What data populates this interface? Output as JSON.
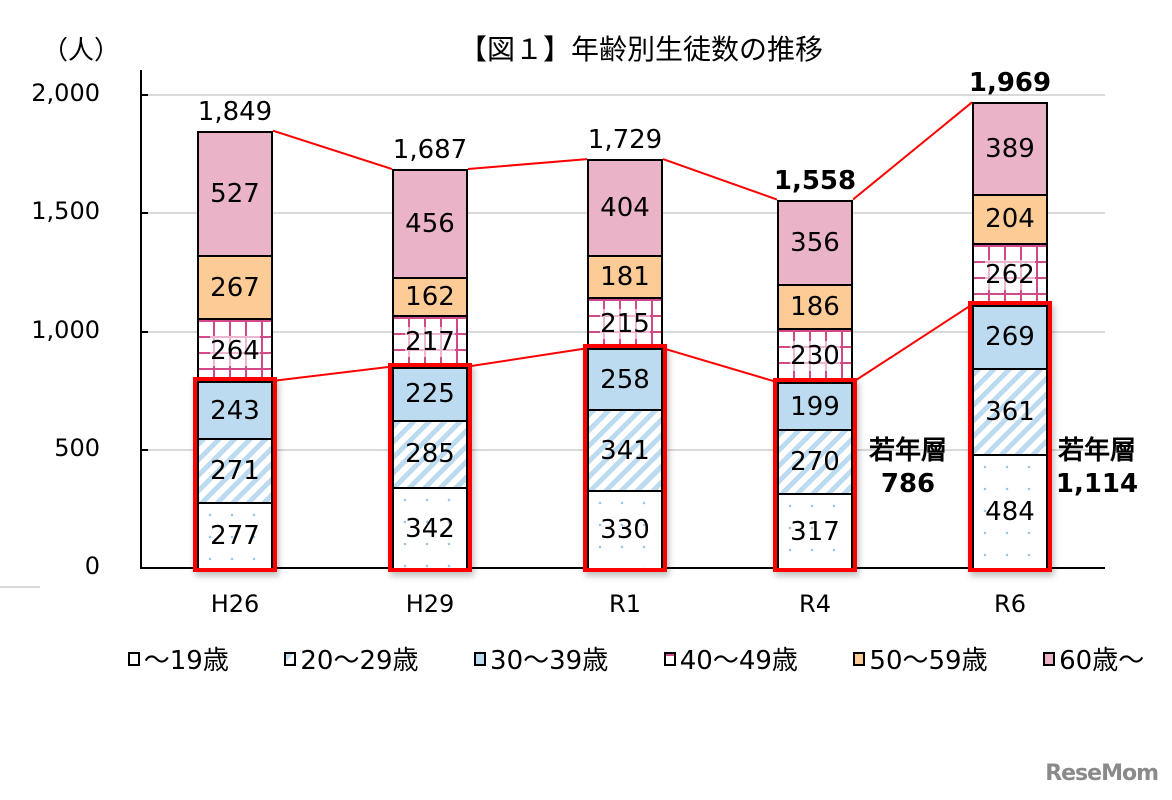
{
  "header": {
    "title": "【図１】年齢別生徒数の推移",
    "unit": "（人）"
  },
  "watermark": "ReseMom",
  "chart_data": {
    "type": "bar",
    "stacked": true,
    "title": "【図１】年齢別生徒数の推移",
    "xlabel": "",
    "ylabel": "（人）",
    "ylim": [
      0,
      2000
    ],
    "yticks": [
      "0",
      "500",
      "1,000",
      "1,500",
      "2,000"
    ],
    "categories": [
      "H26",
      "H29",
      "R1",
      "R4",
      "R6"
    ],
    "series": [
      {
        "name": "～19歳",
        "color": "#ffffff",
        "pattern": "dots-blue",
        "values": [
          277,
          342,
          330,
          317,
          484
        ]
      },
      {
        "name": "20～29歳",
        "color": "#bcdaf0",
        "pattern": "diagonal-stripes",
        "values": [
          271,
          285,
          341,
          270,
          361
        ]
      },
      {
        "name": "30～39歳",
        "color": "#bcdaf0",
        "pattern": "solid",
        "values": [
          243,
          225,
          258,
          199,
          269
        ]
      },
      {
        "name": "40～49歳",
        "color": "#d04a8a",
        "pattern": "dotted-grid",
        "values": [
          264,
          217,
          215,
          230,
          262
        ]
      },
      {
        "name": "50～59歳",
        "color": "#fdcc96",
        "pattern": "solid",
        "values": [
          267,
          162,
          181,
          186,
          204
        ]
      },
      {
        "name": "60歳～",
        "color": "#ebb3c8",
        "pattern": "solid",
        "values": [
          527,
          456,
          404,
          356,
          389
        ]
      }
    ],
    "totals": [
      1849,
      1687,
      1729,
      1558,
      1969
    ],
    "totals_labels": [
      "1,849",
      "1,687",
      "1,729",
      "1,558",
      "1,969"
    ],
    "annotations": [
      {
        "category": "R4",
        "text": "若年層",
        "value": "786"
      },
      {
        "category": "R6",
        "text": "若年層",
        "value": "1,114"
      }
    ],
    "highlight": "Red boxes around 〜39歳 segments (young layer) for each year; red lines connect totals and young-layer tops",
    "legend_position": "bottom",
    "grid": true
  },
  "bars": [
    {
      "label": "H26",
      "total": "1,849",
      "segments": [
        "277",
        "271",
        "243",
        "264",
        "267",
        "527"
      ]
    },
    {
      "label": "H29",
      "total": "1,687",
      "segments": [
        "342",
        "285",
        "225",
        "217",
        "162",
        "456"
      ]
    },
    {
      "label": "R1",
      "total": "1,729",
      "segments": [
        "330",
        "341",
        "258",
        "215",
        "181",
        "404"
      ]
    },
    {
      "label": "R4",
      "total": "1,558",
      "segments": [
        "317",
        "270",
        "199",
        "230",
        "186",
        "356"
      ]
    },
    {
      "label": "R6",
      "total": "1,969",
      "segments": [
        "484",
        "361",
        "269",
        "262",
        "204",
        "389"
      ]
    }
  ],
  "young_labels": [
    {
      "title": "若年層",
      "value": "786"
    },
    {
      "title": "若年層",
      "value": "1,114"
    }
  ],
  "legend": [
    "～19歳",
    "20～29歳",
    "30～39歳",
    "40～49歳",
    "50～59歳",
    "60歳～"
  ]
}
